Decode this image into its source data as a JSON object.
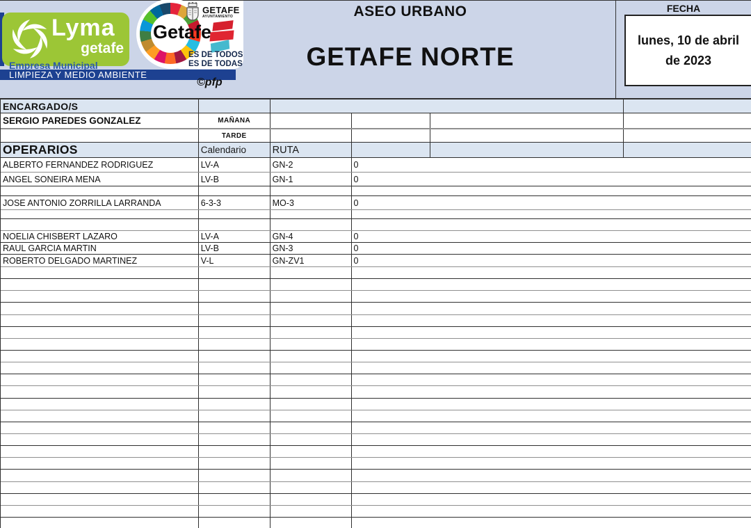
{
  "header": {
    "brand": {
      "lyma_logo_text": "Lyma",
      "lyma_logo_subtext": "getafe",
      "empresa_line": "Empresa Municipal",
      "department_bar": "LIMPIEZA Y MEDIO AMBIENTE",
      "getafe_wordmark": "Getafe",
      "ayuntamiento_title": "GETAFE",
      "ayuntamiento_subtitle": "AYUNTAMIENTO",
      "slogan_line1": "ES DE TODOS",
      "slogan_line2": "ES DE TODAS",
      "credit": "©pfp"
    },
    "section_title": "ASEO URBANO",
    "zone_title": "GETAFE NORTE",
    "fecha": {
      "label": "FECHA",
      "line1": "lunes, 10 de abril",
      "line2": "de 2023"
    }
  },
  "table": {
    "encargados_label": "ENCARGADO/S",
    "encargado_name": "SERGIO PAREDES GONZALEZ",
    "shift_morning": "MAÑANA",
    "shift_afternoon": "TARDE",
    "operarios_label": "OPERARIOS",
    "calendario_header": "Calendario",
    "ruta_header": "RUTA",
    "operarios": [
      {
        "name": "ALBERTO FERNANDEZ RODRIGUEZ",
        "calendario": "LV-A",
        "ruta": "GN-2",
        "valor": "0"
      },
      {
        "name": "ANGEL SONEIRA MENA",
        "calendario": "LV-B",
        "ruta": "GN-1",
        "valor": "0"
      },
      {
        "name": "",
        "calendario": "",
        "ruta": "",
        "valor": ""
      },
      {
        "name": "JOSE ANTONIO ZORRILLA LARRANDA",
        "calendario": "6-3-3",
        "ruta": "MO-3",
        "valor": "0"
      },
      {
        "name": "",
        "calendario": "",
        "ruta": "",
        "valor": ""
      },
      {
        "name": "",
        "calendario": "",
        "ruta": "",
        "valor": ""
      },
      {
        "name": "NOELIA CHISBERT LAZARO",
        "calendario": "LV-A",
        "ruta": "GN-4",
        "valor": "0"
      },
      {
        "name": "RAUL GARCIA MARTIN",
        "calendario": "LV-B",
        "ruta": "GN-3",
        "valor": "0"
      },
      {
        "name": "ROBERTO DELGADO MARTINEZ",
        "calendario": "V-L",
        "ruta": "GN-ZV1",
        "valor": "0"
      }
    ],
    "empty_row_count": 22
  },
  "colors": {
    "header_band": "#ccd5e8",
    "section_row_blue": "#dbe5f1",
    "lyma_green": "#9cc636",
    "lyma_bar_blue": "#1d4191",
    "slogan_navy": "#16294d",
    "grid_dark": "#2f2f2f",
    "grid_gray": "#8f8f8f"
  }
}
